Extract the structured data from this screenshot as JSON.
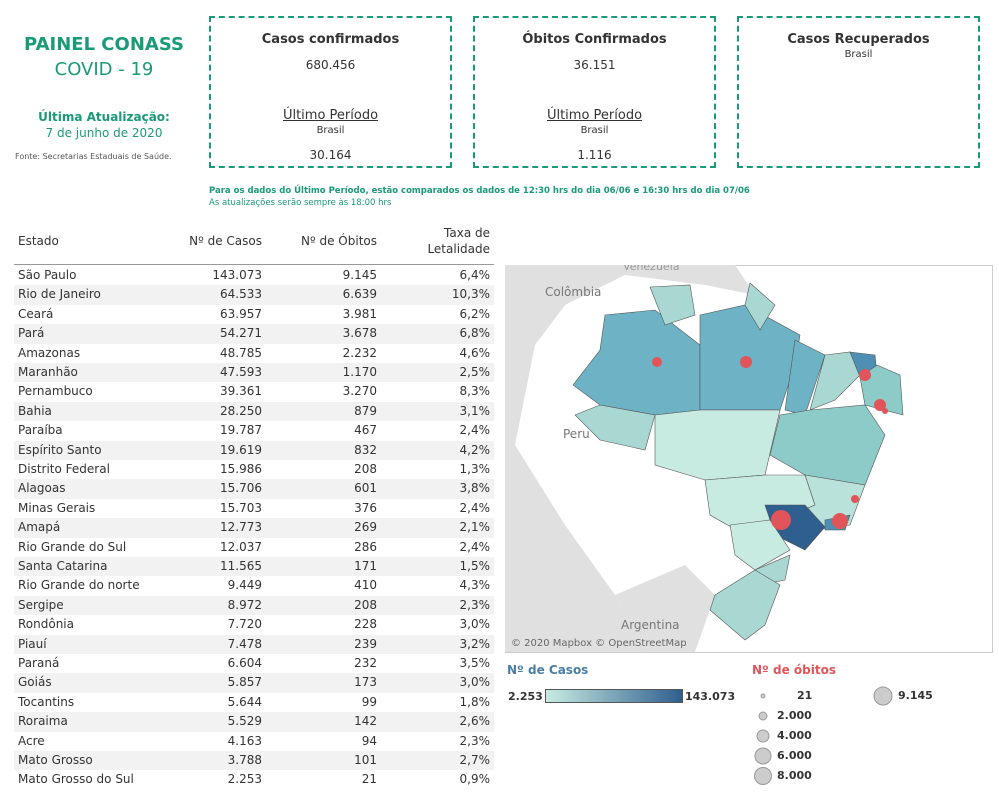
{
  "header": {
    "title": "PAINEL CONASS",
    "subtitle": "COVID - 19",
    "update_label": "Última Atualização:",
    "update_date": "7 de junho de 2020",
    "source": "Fonte: Secretarias Estaduais de Saúde."
  },
  "cards": [
    {
      "title": "Casos confirmados",
      "value": "680.456",
      "period_label": "Último Período",
      "region": "Brasil",
      "period_value": "30.164"
    },
    {
      "title": "Óbitos Confirmados",
      "value": "36.151",
      "period_label": "Último Período",
      "region": "Brasil",
      "period_value": "1.116"
    },
    {
      "title": "Casos Recuperados",
      "region": "Brasil"
    }
  ],
  "notes": [
    "Para os dados do Último Período, estão comparados os dados de 12:30 hrs do dia 06/06 e 16:30 hrs do dia 07/06",
    "As atualizações serão sempre às 18:00 hrs"
  ],
  "table": {
    "columns": [
      "Estado",
      "Nº de Casos",
      "Nº de Óbitos",
      "Taxa de Letalidade"
    ],
    "rows": [
      [
        "São Paulo",
        "143.073",
        "9.145",
        "6,4%"
      ],
      [
        "Rio de Janeiro",
        "64.533",
        "6.639",
        "10,3%"
      ],
      [
        "Ceará",
        "63.957",
        "3.981",
        "6,2%"
      ],
      [
        "Pará",
        "54.271",
        "3.678",
        "6,8%"
      ],
      [
        "Amazonas",
        "48.785",
        "2.232",
        "4,6%"
      ],
      [
        "Maranhão",
        "47.593",
        "1.170",
        "2,5%"
      ],
      [
        "Pernambuco",
        "39.361",
        "3.270",
        "8,3%"
      ],
      [
        "Bahia",
        "28.250",
        "879",
        "3,1%"
      ],
      [
        "Paraíba",
        "19.787",
        "467",
        "2,4%"
      ],
      [
        "Espírito Santo",
        "19.619",
        "832",
        "4,2%"
      ],
      [
        "Distrito Federal",
        "15.986",
        "208",
        "1,3%"
      ],
      [
        "Alagoas",
        "15.706",
        "601",
        "3,8%"
      ],
      [
        "Minas Gerais",
        "15.703",
        "376",
        "2,4%"
      ],
      [
        "Amapá",
        "12.773",
        "269",
        "2,1%"
      ],
      [
        "Rio Grande do Sul",
        "12.037",
        "286",
        "2,4%"
      ],
      [
        "Santa Catarina",
        "11.565",
        "171",
        "1,5%"
      ],
      [
        "Rio Grande do norte",
        "9.449",
        "410",
        "4,3%"
      ],
      [
        "Sergipe",
        "8.972",
        "208",
        "2,3%"
      ],
      [
        "Rondônia",
        "7.720",
        "228",
        "3,0%"
      ],
      [
        "Piauí",
        "7.478",
        "239",
        "3,2%"
      ],
      [
        "Paraná",
        "6.604",
        "232",
        "3,5%"
      ],
      [
        "Goiás",
        "5.857",
        "173",
        "3,0%"
      ],
      [
        "Tocantins",
        "5.644",
        "99",
        "1,8%"
      ],
      [
        "Roraima",
        "5.529",
        "142",
        "2,6%"
      ],
      [
        "Acre",
        "4.163",
        "94",
        "2,3%"
      ],
      [
        "Mato Grosso",
        "3.788",
        "101",
        "2,7%"
      ],
      [
        "Mato Grosso do Sul",
        "2.253",
        "21",
        "0,9%"
      ]
    ]
  },
  "map": {
    "labels": [
      "Venezuela",
      "Colômbia",
      "Peru",
      "Argentina"
    ],
    "attribution": "© 2020 Mapbox © OpenStreetMap"
  },
  "legend_cases": {
    "title": "Nº de Casos",
    "min": "2.253",
    "max": "143.073"
  },
  "legend_deaths": {
    "title": "Nº de óbitos",
    "items": [
      "21",
      "2.000",
      "4.000",
      "6.000",
      "8.000",
      "9.145"
    ]
  }
}
